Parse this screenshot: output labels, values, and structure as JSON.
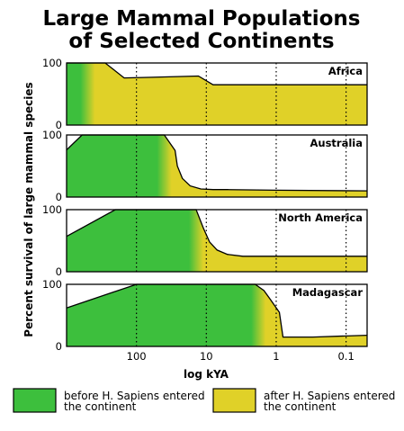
{
  "chart_data": {
    "type": "area",
    "title": [
      "Large Mammal Populations",
      "of Selected Continents"
    ],
    "ylabel": "Percent survival of large mammal species",
    "xlabel": "log kYA",
    "x_scale": "log",
    "x_reversed": true,
    "xlim": [
      1000,
      0.05
    ],
    "ylim": [
      0,
      100
    ],
    "x_ticks": [
      {
        "value": 100,
        "label": "100"
      },
      {
        "value": 10,
        "label": "10"
      },
      {
        "value": 1,
        "label": "1"
      },
      {
        "value": 0.1,
        "label": "0.1"
      }
    ],
    "y_ticks": [
      {
        "value": 0,
        "label": "0"
      },
      {
        "value": 100,
        "label": "100"
      }
    ],
    "gridlines": "vertical dotted at x ticks",
    "colors": {
      "before": "#3dbf3d",
      "after": "#e0d128"
    },
    "legend": {
      "position": "bottom",
      "entries": [
        {
          "key": "before",
          "lines": [
            "before H. Sapiens entered",
            "the continent"
          ]
        },
        {
          "key": "after",
          "lines": [
            "after H. Sapiens entered",
            "the continent"
          ]
        }
      ]
    },
    "panels": [
      {
        "name": "Africa",
        "arrival_kya": 500,
        "x": [
          1000,
          280,
          150,
          60,
          13,
          8,
          0.05
        ],
        "y": [
          100,
          100,
          76,
          77,
          79,
          65,
          65
        ]
      },
      {
        "name": "Australia",
        "arrival_kya": 40,
        "x": [
          1000,
          600,
          40,
          28,
          26,
          22,
          17,
          12,
          8,
          5,
          1,
          0.05
        ],
        "y": [
          76,
          100,
          100,
          75,
          50,
          30,
          18,
          13,
          12,
          12,
          11,
          10
        ]
      },
      {
        "name": "North America",
        "arrival_kya": 14,
        "x": [
          1000,
          200,
          14,
          11,
          9,
          7,
          5,
          3,
          1,
          0.05
        ],
        "y": [
          57,
          100,
          100,
          70,
          48,
          35,
          28,
          25,
          25,
          25
        ]
      },
      {
        "name": "Madagascar",
        "arrival_kya": 1.8,
        "x": [
          1000,
          100,
          2,
          1.5,
          1.2,
          0.9,
          0.8,
          0.3,
          0.05
        ],
        "y": [
          62,
          100,
          100,
          90,
          75,
          55,
          15,
          15,
          18
        ]
      }
    ]
  }
}
